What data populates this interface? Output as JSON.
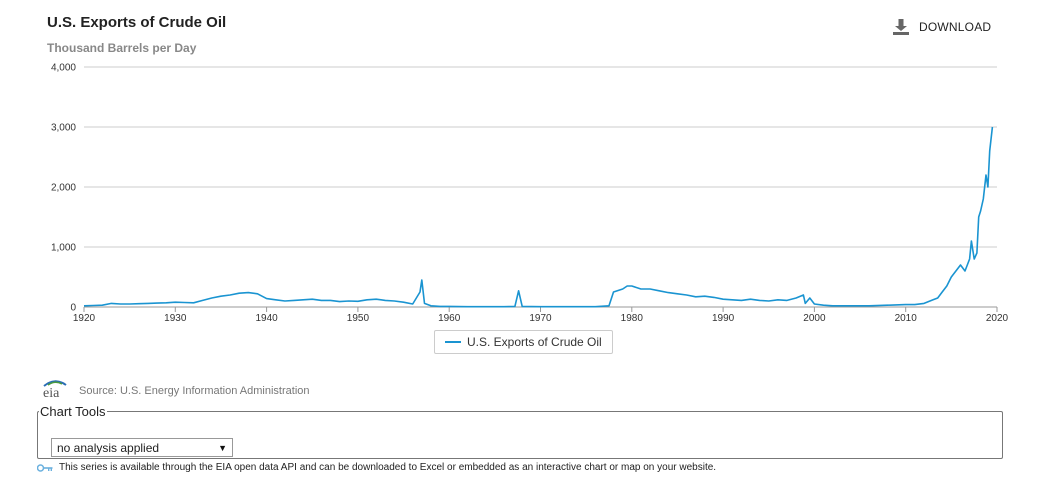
{
  "header": {
    "title": "U.S. Exports of Crude Oil",
    "subtitle": "Thousand Barrels per Day",
    "download_label": "DOWNLOAD"
  },
  "legend": {
    "label": "U.S. Exports of Crude Oil"
  },
  "footer": {
    "source": "Source: U.S. Energy Information Administration",
    "chart_tools_label": "Chart Tools",
    "analysis_selected": "no analysis applied",
    "api_note": "This series is available through the EIA open data API and can be downloaded to Excel or embedded as an interactive chart or map on your website."
  },
  "colors": {
    "series": "#1a94d1",
    "grid": "#cccccc"
  },
  "icons": {
    "download": "download-icon",
    "logo": "eia-logo",
    "api": "key-icon"
  },
  "chart_data": {
    "type": "line",
    "title": "U.S. Exports of Crude Oil",
    "subtitle": "Thousand Barrels per Day",
    "xlabel": "",
    "ylabel": "",
    "xlim": [
      1920,
      2020
    ],
    "ylim": [
      0,
      4000
    ],
    "x_ticks": [
      "1920",
      "1930",
      "1940",
      "1950",
      "1960",
      "1970",
      "1980",
      "1990",
      "2000",
      "2010",
      "2020"
    ],
    "y_ticks": [
      "0",
      "1,000",
      "2,000",
      "3,000",
      "4,000"
    ],
    "grid": true,
    "legend_position": "bottom-center",
    "series": [
      {
        "name": "U.S. Exports of Crude Oil",
        "x": [
          1920,
          1921,
          1922,
          1923,
          1924,
          1925,
          1926,
          1927,
          1928,
          1929,
          1930,
          1931,
          1932,
          1933,
          1934,
          1935,
          1936,
          1937,
          1938,
          1939,
          1940,
          1941,
          1942,
          1943,
          1944,
          1945,
          1946,
          1947,
          1948,
          1949,
          1950,
          1951,
          1952,
          1953,
          1954,
          1955,
          1956,
          1956.8,
          1957,
          1957.3,
          1958,
          1959,
          1960,
          1962,
          1964,
          1966,
          1967.2,
          1967.6,
          1968,
          1970,
          1972,
          1974,
          1976,
          1977.5,
          1978,
          1979,
          1979.5,
          1980,
          1981,
          1982,
          1983,
          1984,
          1985,
          1986,
          1987,
          1988,
          1989,
          1990,
          1991,
          1992,
          1993,
          1994,
          1995,
          1996,
          1997,
          1998,
          1998.8,
          1999,
          1999.5,
          2000,
          2001,
          2002,
          2004,
          2006,
          2008,
          2010,
          2011,
          2012,
          2013,
          2013.5,
          2014,
          2014.5,
          2015,
          2015.5,
          2016,
          2016.5,
          2017,
          2017.2,
          2017.5,
          2017.8,
          2018,
          2018.2,
          2018.5,
          2018.8,
          2019,
          2019.2,
          2019.5
        ],
        "values": [
          20,
          25,
          30,
          60,
          50,
          50,
          55,
          60,
          65,
          70,
          80,
          75,
          70,
          110,
          150,
          180,
          200,
          230,
          240,
          220,
          140,
          120,
          100,
          110,
          120,
          130,
          110,
          110,
          90,
          100,
          95,
          120,
          130,
          110,
          100,
          80,
          50,
          250,
          450,
          60,
          20,
          10,
          10,
          5,
          5,
          5,
          10,
          270,
          10,
          5,
          5,
          5,
          5,
          20,
          250,
          300,
          350,
          350,
          300,
          300,
          270,
          240,
          220,
          200,
          170,
          180,
          160,
          130,
          120,
          110,
          130,
          110,
          100,
          120,
          110,
          150,
          200,
          60,
          150,
          50,
          30,
          20,
          20,
          20,
          30,
          40,
          40,
          60,
          120,
          150,
          250,
          350,
          500,
          600,
          700,
          600,
          800,
          1100,
          800,
          900,
          1500,
          1600,
          1800,
          2200,
          2000,
          2600,
          3000
        ]
      }
    ]
  }
}
